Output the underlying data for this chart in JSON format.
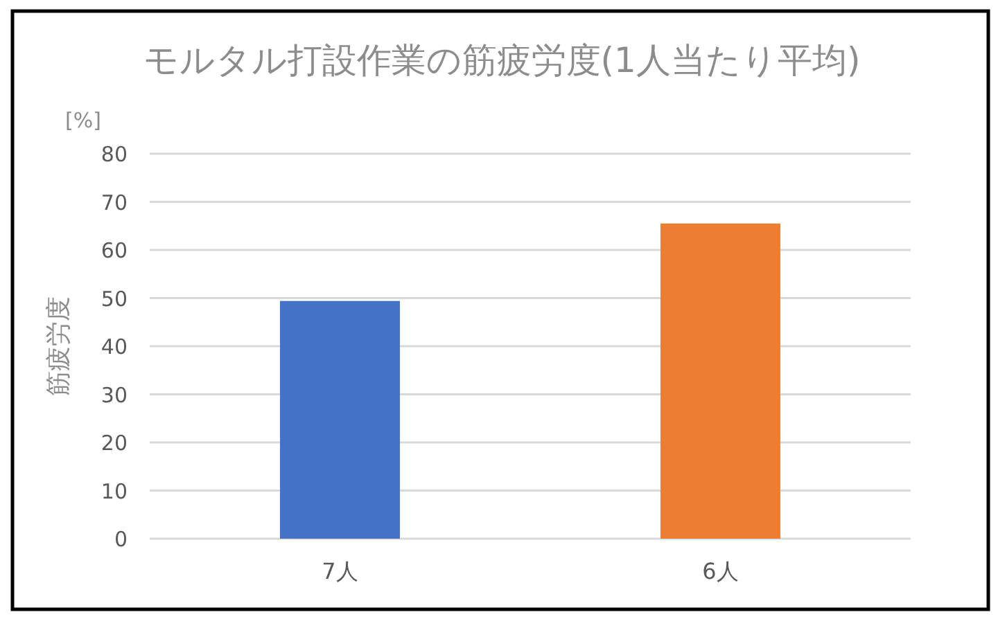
{
  "chart_data": {
    "type": "bar",
    "title": "モルタル打設作業の筋疲労度(1人当たり平均)",
    "ylabel": "筋疲労度",
    "annotations": [
      "[%]"
    ],
    "categories": [
      "7人",
      "6人"
    ],
    "values": [
      49.4,
      65.5
    ],
    "colors": [
      "#4472c4",
      "#ed7d31"
    ],
    "ylim": [
      0,
      80
    ],
    "yticks": [
      0,
      10,
      20,
      30,
      40,
      50,
      60,
      70,
      80
    ],
    "grid": "y",
    "legend": false
  }
}
